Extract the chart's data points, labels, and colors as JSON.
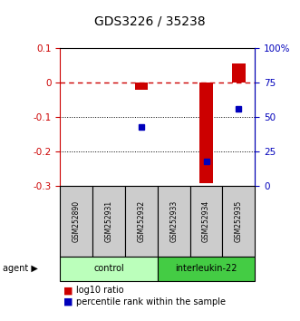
{
  "title": "GDS3226 / 35238",
  "categories": [
    "GSM252890",
    "GSM252931",
    "GSM252932",
    "GSM252933",
    "GSM252934",
    "GSM252935"
  ],
  "log10_ratio": [
    null,
    null,
    -0.02,
    null,
    -0.29,
    0.055
  ],
  "percentile_rank": [
    null,
    null,
    43,
    null,
    18,
    56
  ],
  "ylim_left": [
    -0.3,
    0.1
  ],
  "ylim_right": [
    0,
    100
  ],
  "yticks_left": [
    0.1,
    0.0,
    -0.1,
    -0.2,
    -0.3
  ],
  "ytick_labels_left": [
    "0.1",
    "0",
    "-0.1",
    "-0.2",
    "-0.3"
  ],
  "yticks_right": [
    100,
    75,
    50,
    25,
    0
  ],
  "ytick_labels_right": [
    "100%",
    "75",
    "50",
    "25",
    "0"
  ],
  "groups": [
    {
      "label": "control",
      "indices": [
        0,
        1,
        2
      ],
      "color": "#bbffbb"
    },
    {
      "label": "interleukin-22",
      "indices": [
        3,
        4,
        5
      ],
      "color": "#44cc44"
    }
  ],
  "bar_color": "#cc0000",
  "dot_color": "#0000bb",
  "dashed_line_color": "#cc0000",
  "dashed_line_y": 0.0,
  "background_color": "#ffffff",
  "title_color": "#000000",
  "left_axis_color": "#cc0000",
  "right_axis_color": "#0000bb",
  "grid_color": "#000000",
  "bar_width": 0.4
}
